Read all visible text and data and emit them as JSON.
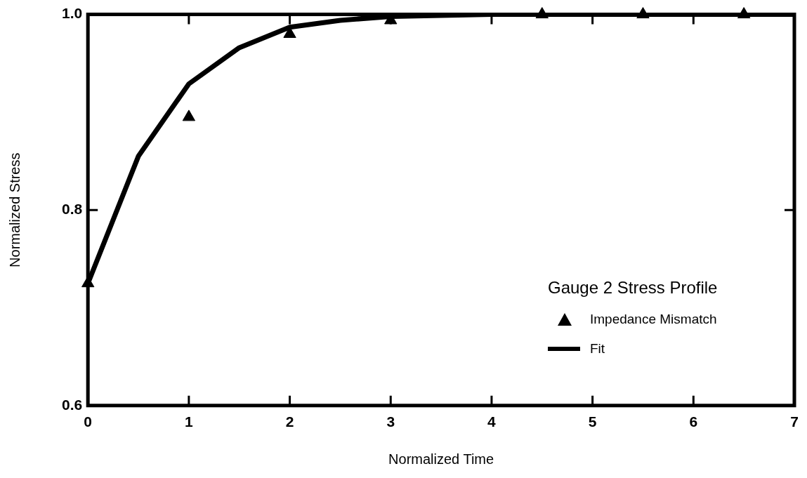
{
  "chart_data": {
    "type": "scatter",
    "xlabel": "Normalized Time",
    "ylabel": "Normalized Stress",
    "legend_title": "Gauge 2 Stress Profile",
    "legend": "bottom right",
    "grid": false,
    "xlim": [
      0,
      7
    ],
    "xticks": [
      0,
      1,
      2,
      3,
      4,
      5,
      6,
      7
    ],
    "ylim": [
      0.6,
      1.0
    ],
    "yticks": [
      0.6,
      0.8,
      {
        "value": 1.0,
        "label": "1.0"
      }
    ],
    "series": [
      {
        "name": "Impedance Mismatch",
        "marker": "triangle",
        "color": "#000000",
        "x": [
          0,
          1,
          2,
          3,
          4.5,
          5.5,
          6.5
        ],
        "values": [
          0.725,
          0.895,
          0.98,
          0.994,
          1.0,
          1.0,
          1.0
        ]
      },
      {
        "name": "Fit",
        "type": "line",
        "marker": "none",
        "line_style": "solid",
        "color": "#000000",
        "x": [
          0,
          0.5,
          1,
          1.5,
          2,
          2.5,
          3,
          3.5,
          4,
          5,
          6,
          7
        ],
        "values": [
          0.725,
          0.855,
          0.929,
          0.966,
          0.987,
          0.994,
          0.998,
          0.999,
          1.0,
          1.0,
          1.0,
          1.0
        ]
      }
    ]
  }
}
